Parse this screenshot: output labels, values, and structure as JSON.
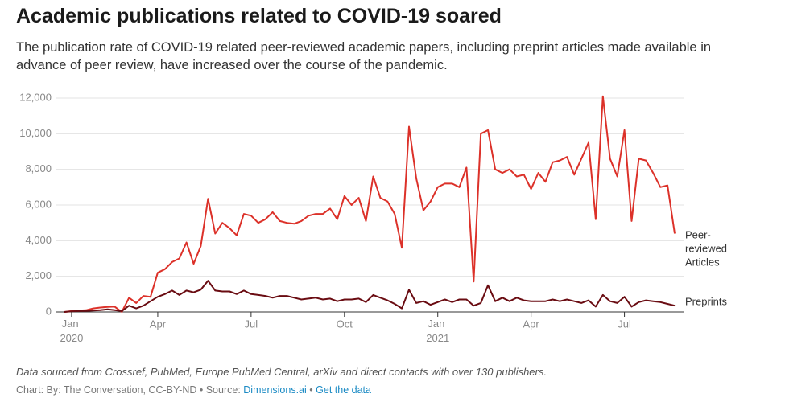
{
  "chart_data": {
    "type": "line",
    "title": "Academic publications related to COVID-19 soared",
    "subtitle": "The publication rate of COVID-19 related peer-reviewed academic papers, including preprint articles made available in advance of peer review, have increased over the course of the pandemic.",
    "note": "Data sourced from Crossref, PubMed, Europe PubMed Central, arXiv and direct contacts with over 130 publishers.",
    "credit": "Chart: By: The Conversation, CC-BY-ND • Source:",
    "source_link": "Dimensions.ai",
    "separator": "•",
    "data_link": "Get the data",
    "categories": [
      null,
      "Jan 2020",
      null,
      null,
      null,
      null,
      null,
      null,
      null,
      null,
      null,
      null,
      null,
      "Apr",
      null,
      null,
      null,
      null,
      null,
      null,
      null,
      null,
      null,
      null,
      null,
      null,
      "Jul",
      null,
      null,
      null,
      null,
      null,
      null,
      null,
      null,
      null,
      null,
      null,
      null,
      "Oct",
      null,
      null,
      null,
      null,
      null,
      null,
      null,
      null,
      null,
      null,
      null,
      null,
      "Jan 2021",
      null,
      null,
      null,
      null,
      null,
      null,
      null,
      null,
      null,
      null,
      null,
      null,
      "Apr",
      null,
      null,
      null,
      null,
      null,
      null,
      null,
      null,
      null,
      null,
      null,
      null,
      "Jul",
      null,
      null,
      null,
      null,
      null,
      null,
      null
    ],
    "series": [
      {
        "name": "Peer-reviewed Articles",
        "color": "#dc3129",
        "values": [
          0,
          50,
          80,
          100,
          200,
          250,
          280,
          300,
          0,
          800,
          500,
          900,
          850,
          2200,
          2400,
          2800,
          3000,
          3900,
          2700,
          3700,
          6350,
          4400,
          5000,
          4700,
          4300,
          5500,
          5400,
          5000,
          5200,
          5600,
          5100,
          5000,
          4950,
          5100,
          5400,
          5500,
          5500,
          5800,
          5200,
          6500,
          6000,
          6400,
          5100,
          7600,
          6400,
          6200,
          5500,
          3600,
          10400,
          7500,
          5700,
          6200,
          7000,
          7200,
          7200,
          7000,
          8100,
          1700,
          10000,
          10200,
          8000,
          7800,
          8000,
          7600,
          7700,
          6900,
          7800,
          7300,
          8400,
          8500,
          8700,
          7700,
          8600,
          9500,
          5200,
          12100,
          8600,
          7600,
          10200,
          5100,
          8600,
          8500,
          7800,
          7000,
          7100,
          4400
        ]
      },
      {
        "name": "Preprints",
        "color": "#6a0c12",
        "values": [
          0,
          30,
          50,
          60,
          80,
          100,
          150,
          100,
          50,
          350,
          200,
          350,
          600,
          850,
          1000,
          1200,
          950,
          1200,
          1100,
          1250,
          1750,
          1200,
          1150,
          1150,
          1000,
          1200,
          1000,
          950,
          900,
          800,
          900,
          900,
          800,
          700,
          750,
          800,
          700,
          750,
          600,
          700,
          700,
          750,
          550,
          950,
          800,
          650,
          450,
          200,
          1250,
          500,
          600,
          400,
          550,
          700,
          550,
          700,
          700,
          350,
          500,
          1500,
          600,
          800,
          600,
          800,
          650,
          600,
          600,
          600,
          700,
          600,
          700,
          600,
          500,
          650,
          300,
          950,
          600,
          500,
          850,
          300,
          550,
          650,
          600,
          550,
          450,
          350
        ]
      }
    ],
    "ylim": [
      0,
      12000
    ],
    "yticks": [
      0,
      {
        "value": 2000,
        "label": "2,000"
      },
      {
        "value": 4000,
        "label": "4,000"
      },
      {
        "value": 6000,
        "label": "6,000"
      },
      {
        "value": 8000,
        "label": "8,000"
      },
      {
        "value": 10000,
        "label": "10,000"
      },
      {
        "value": 12000,
        "label": "12,000"
      }
    ],
    "grid": true
  }
}
